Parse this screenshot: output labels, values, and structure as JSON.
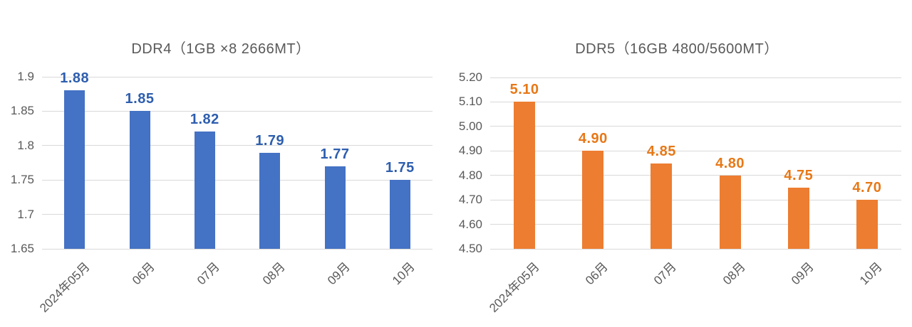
{
  "page": {
    "background": "#ffffff"
  },
  "axis": {
    "tick_label_color": "#595959",
    "category_label_color": "#595959",
    "title_color": "#595959",
    "grid_color": "#D9D9D9"
  },
  "chart_data": [
    {
      "type": "bar",
      "title": "DDR4（1GB ×8 2666MT）",
      "categories": [
        "2024年05月",
        "06月",
        "07月",
        "08月",
        "09月",
        "10月"
      ],
      "values": [
        1.88,
        1.85,
        1.82,
        1.79,
        1.77,
        1.75
      ],
      "values_display": [
        "1.88",
        "1.85",
        "1.82",
        "1.79",
        "1.77",
        "1.75"
      ],
      "ylim": [
        1.65,
        1.9
      ],
      "ytick_step": 0.05,
      "ytick_labels": [
        "1.65",
        "1.7",
        "1.75",
        "1.8",
        "1.85",
        "1.9"
      ],
      "grid": true,
      "legend": "none",
      "bar_color": "#4472C4",
      "data_label_color": "#2E5EAE"
    },
    {
      "type": "bar",
      "title": "DDR5（16GB 4800/5600MT）",
      "categories": [
        "2024年05月",
        "06月",
        "07月",
        "08月",
        "09月",
        "10月"
      ],
      "values": [
        5.1,
        4.9,
        4.85,
        4.8,
        4.75,
        4.7
      ],
      "values_display": [
        "5.10",
        "4.90",
        "4.85",
        "4.80",
        "4.75",
        "4.70"
      ],
      "ylim": [
        4.5,
        5.2
      ],
      "ytick_step": 0.1,
      "ytick_labels": [
        "4.50",
        "4.60",
        "4.70",
        "4.80",
        "4.90",
        "5.00",
        "5.10",
        "5.20"
      ],
      "grid": true,
      "legend": "none",
      "bar_color": "#ED7D31",
      "data_label_color": "#E77817"
    }
  ]
}
